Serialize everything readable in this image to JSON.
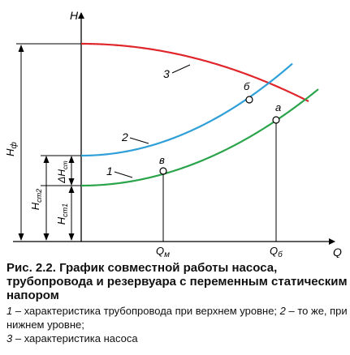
{
  "figure": {
    "axes": {
      "x_label": "Q",
      "y_label": "H"
    },
    "curve_labels": {
      "curve1": "1",
      "curve2": "2",
      "curve3": "3"
    },
    "point_labels": {
      "a": "а",
      "b": "б",
      "v": "в"
    },
    "tick_labels": {
      "q_m": "Q",
      "q_m_sub": "м",
      "q_b": "Q",
      "q_b_sub": "б"
    },
    "dimension_labels": {
      "h_f": "H",
      "h_f_sub": "ф",
      "h_st2": "H",
      "h_st2_sub": "ст2",
      "h_st1": "H",
      "h_st1_sub": "ст1",
      "delta_h": "ΔH",
      "delta_h_sub": "ст"
    },
    "colors": {
      "pump_curve": "#e0252b",
      "pipeline_upper": "#2f9fd8",
      "pipeline_lower": "#2aa44a",
      "lines": "#000000"
    }
  },
  "caption": {
    "title": "Рис. 2.2. График совместной работы насоса, трубопровода и резервуара с переменным статическим напором",
    "legend": [
      {
        "num": "1",
        "text": " – характеристика трубопровода при верхнем уровне; "
      },
      {
        "num": "2",
        "text": " – то же, при нижнем уровне;"
      },
      {
        "num": "3",
        "text": " – характеристика насоса"
      }
    ]
  }
}
